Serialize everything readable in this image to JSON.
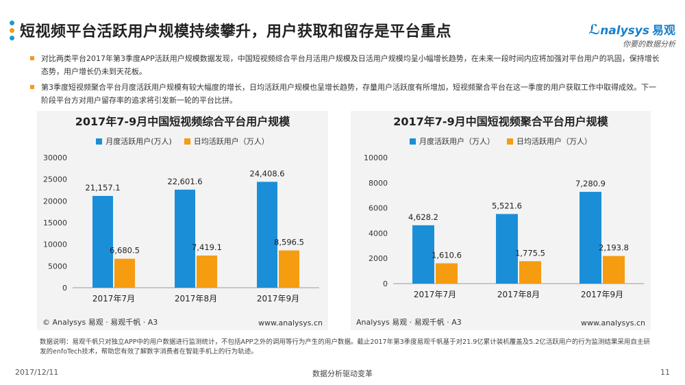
{
  "header": {
    "title": "短视频平台活跃用户规模持续攀升，用户获取和留存是平台重点",
    "logo_text": "nalysys",
    "logo_cn": "易观",
    "logo_sub": "你要的数据分析"
  },
  "bullets": [
    "对比两类平台2017年第3季度APP活跃用户规模数据发现，中国短视频综合平台月活用户规模及日活用户规模均呈小幅增长趋势，在未来一段时间内应将加强对平台用户的巩固，保持增长态势，用户增长仍未到天花板。",
    "第3季度短视频聚合平台月度活跃用户规模有较大幅度的增长，日均活跃用户规模也呈增长趋势，存量用户活跃度有所增加，短视频聚合平台在这一季度的用户获取工作中取得成效。下一阶段平台方对用户留存率的追求将引发新一轮的平台比拼。"
  ],
  "colors": {
    "monthly": "#1a8fd8",
    "daily": "#f59c11",
    "panel": "#f3f3f3"
  },
  "chart_data": [
    {
      "type": "bar",
      "title": "2017年7-9月中国短视频综合平台用户规模",
      "categories": [
        "2017年7月",
        "2017年8月",
        "2017年9月"
      ],
      "series": [
        {
          "name": "月度活跃用户(万人)",
          "values": [
            21157.1,
            22601.6,
            24408.6
          ],
          "labels": [
            "21,157.1",
            "22,601.6",
            "24,408.6"
          ]
        },
        {
          "name": "日均活跃用户（万人）",
          "values": [
            6680.5,
            7419.1,
            8596.5
          ],
          "labels": [
            "6,680.5",
            "7,419.1",
            "8,596.5"
          ]
        }
      ],
      "ylim": [
        0,
        30000
      ],
      "yticks": [
        0,
        5000,
        10000,
        15000,
        20000,
        25000,
        30000
      ],
      "ytick_labels": [
        "0",
        "5000",
        "10000",
        "15000",
        "20000",
        "25000",
        "30000"
      ],
      "legend": "top",
      "footer_left": "© Analysys 易观 · 易观千帆 · A3",
      "footer_right": "www.analysys.cn"
    },
    {
      "type": "bar",
      "title": "2017年7-9月中国短视频聚合平台用户规模",
      "categories": [
        "2017年7月",
        "2017年8月",
        "2017年9月"
      ],
      "series": [
        {
          "name": "月度活跃用户（万人）",
          "values": [
            4628.2,
            5521.6,
            7280.9
          ],
          "labels": [
            "4,628.2",
            "5,521.6",
            "7,280.9"
          ]
        },
        {
          "name": "日均活跃用户（万人）",
          "values": [
            1610.6,
            1775.5,
            2193.8
          ],
          "labels": [
            "1,610.6",
            "1,775.5",
            "2,193.8"
          ]
        }
      ],
      "ylim": [
        0,
        10000
      ],
      "yticks": [
        0,
        2000,
        4000,
        6000,
        8000,
        10000
      ],
      "ytick_labels": [
        "0",
        "2000",
        "4000",
        "6000",
        "8000",
        "10000"
      ],
      "legend": "top",
      "footer_left": "Analysys 易观 · 易观千帆 · A3",
      "footer_right": "www.analysys.cn"
    }
  ],
  "note": "数据说明：易观千帆只对独立APP中的用户数据进行监测统计，不包括APP之外的调用等行为产生的用户数据。截止2017年第3季度易观千帆基于对21.9亿累计装机覆盖及5.2亿活跃用户的行为监测结果采用自主研发的enfoTech技术，帮助您有效了解数字消费者在智能手机上的行为轨迹。",
  "footer": {
    "date": "2017/12/11",
    "center": "数据分析驱动变革",
    "page": "11"
  }
}
